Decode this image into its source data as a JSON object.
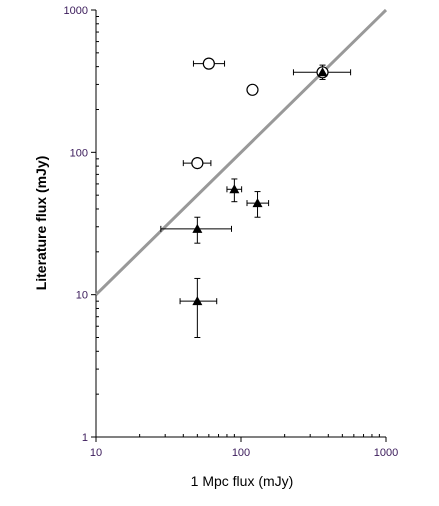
{
  "chart_data": {
    "type": "scatter",
    "title": "",
    "xlabel": "1 Mpc flux (mJy)",
    "ylabel": "Literature flux (mJy)",
    "xscale": "log",
    "yscale": "log",
    "xlim": [
      10,
      1000
    ],
    "ylim": [
      1,
      1000
    ],
    "x_ticks": [
      10,
      100,
      1000
    ],
    "y_ticks": [
      1,
      10,
      100,
      1000
    ],
    "x_tick_labels": [
      "10",
      "100",
      "1000"
    ],
    "y_tick_labels": [
      "1",
      "10",
      "100",
      "1000"
    ],
    "grid": false,
    "legend": false,
    "reference_line": {
      "label": "",
      "x": [
        10,
        1000
      ],
      "y": [
        10,
        1000
      ],
      "color": "#999999"
    },
    "series": [
      {
        "marker": "open-circle",
        "color": "#000000",
        "points": [
          {
            "x": 60,
            "y": 420,
            "xerr": [
              47,
              77
            ],
            "yerr": null
          },
          {
            "x": 120,
            "y": 275,
            "xerr": null,
            "yerr": null
          },
          {
            "x": 50,
            "y": 84,
            "xerr": [
              40,
              62
            ],
            "yerr": null
          },
          {
            "x": 365,
            "y": 365,
            "xerr": [
              230,
              570
            ],
            "yerr": [
              325,
              410
            ]
          }
        ]
      },
      {
        "marker": "filled-triangle",
        "color": "#000000",
        "points": [
          {
            "x": 50,
            "y": 29,
            "xerr": [
              28,
              86
            ],
            "yerr": [
              23,
              35
            ]
          },
          {
            "x": 90,
            "y": 55,
            "xerr": [
              80,
              101
            ],
            "yerr": [
              45,
              65
            ]
          },
          {
            "x": 130,
            "y": 44,
            "xerr": [
              110,
              155
            ],
            "yerr": [
              35,
              53
            ]
          },
          {
            "x": 50,
            "y": 9,
            "xerr": [
              38,
              68
            ],
            "yerr": [
              5,
              13
            ]
          },
          {
            "x": 365,
            "y": 365,
            "xerr": null,
            "yerr": null
          }
        ]
      }
    ],
    "colors": {
      "axis": "#000000",
      "tick_label": "#3a1a5a",
      "reference_line": "#999999",
      "marker": "#000000",
      "background": "#ffffff"
    }
  }
}
